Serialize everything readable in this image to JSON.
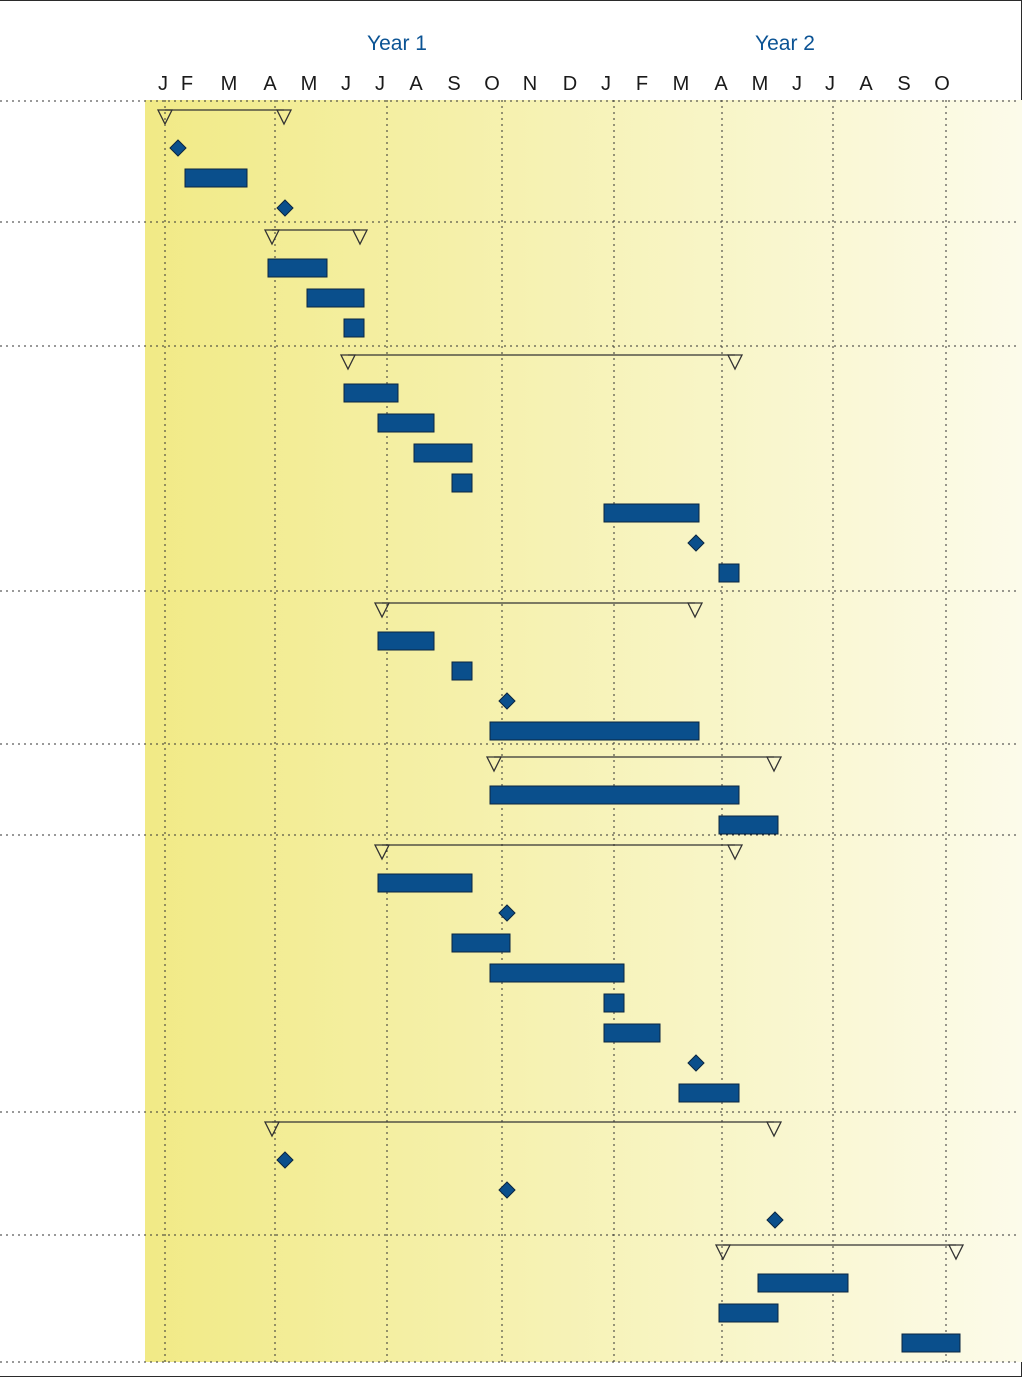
{
  "chart_data": {
    "type": "gantt",
    "time_axis": {
      "years": [
        {
          "label": "Year 1",
          "months": [
            "J",
            "F",
            "M",
            "A",
            "M",
            "J",
            "J",
            "A",
            "S",
            "O",
            "N",
            "D"
          ]
        },
        {
          "label": "Year 2",
          "months": [
            "J",
            "F",
            "M",
            "A",
            "M",
            "J",
            "J",
            "A",
            "S",
            "O"
          ]
        }
      ],
      "start": "Year 1 Jan",
      "end": "Year 2 Oct",
      "grid": "dotted"
    },
    "colors": {
      "bar": "#0a4f8c",
      "milestone": "#0a4f8c",
      "summary": "#333333",
      "gradient_start": "#f1ea86",
      "gradient_end": "#fcfbea",
      "year_label": "#0b5394",
      "grid": "#333333"
    },
    "groups": [
      {
        "summary": [
          "Y1-Jan",
          "Y1-Apr"
        ],
        "items": [
          {
            "type": "milestone",
            "date": "Y1-Jan"
          },
          {
            "type": "task",
            "start": "Y1-Feb",
            "end": "Y1-Mar"
          },
          {
            "type": "milestone",
            "date": "Y1-Apr"
          }
        ]
      },
      {
        "summary": [
          "Y1-Apr",
          "Y1-Jun"
        ],
        "items": [
          {
            "type": "task",
            "start": "Y1-Apr",
            "end": "Y1-May"
          },
          {
            "type": "task",
            "start": "Y1-May",
            "end": "Y1-Jun"
          },
          {
            "type": "task",
            "start": "Y1-Jun",
            "end": "Y1-Jun"
          }
        ]
      },
      {
        "summary": [
          "Y1-Jun",
          "Y2-Apr"
        ],
        "items": [
          {
            "type": "task",
            "start": "Y1-Jun",
            "end": "Y1-Jul"
          },
          {
            "type": "task",
            "start": "Y1-Jul",
            "end": "Y1-Aug"
          },
          {
            "type": "task",
            "start": "Y1-Aug",
            "end": "Y1-Sep"
          },
          {
            "type": "task",
            "start": "Y1-Sep",
            "end": "Y1-Sep"
          },
          {
            "type": "task",
            "start": "Y2-Jan",
            "end": "Y2-Mar"
          },
          {
            "type": "milestone",
            "date": "Y2-Mar"
          },
          {
            "type": "task",
            "start": "Y2-Apr",
            "end": "Y2-Apr"
          }
        ]
      },
      {
        "summary": [
          "Y1-Jul",
          "Y2-Mar"
        ],
        "items": [
          {
            "type": "task",
            "start": "Y1-Jul",
            "end": "Y1-Aug"
          },
          {
            "type": "task",
            "start": "Y1-Sep",
            "end": "Y1-Sep"
          },
          {
            "type": "milestone",
            "date": "Y1-Oct"
          },
          {
            "type": "task",
            "start": "Y1-Oct",
            "end": "Y2-Mar"
          }
        ]
      },
      {
        "summary": [
          "Y1-Oct",
          "Y2-May"
        ],
        "items": [
          {
            "type": "task",
            "start": "Y1-Oct",
            "end": "Y2-Apr"
          },
          {
            "type": "task",
            "start": "Y2-Apr",
            "end": "Y2-May"
          }
        ]
      },
      {
        "summary": [
          "Y1-Jul",
          "Y2-Apr"
        ],
        "items": [
          {
            "type": "task",
            "start": "Y1-Jul",
            "end": "Y1-Sep"
          },
          {
            "type": "milestone",
            "date": "Y1-Oct"
          },
          {
            "type": "task",
            "start": "Y1-Sep",
            "end": "Y1-Oct"
          },
          {
            "type": "task",
            "start": "Y1-Oct",
            "end": "Y2-Jan"
          },
          {
            "type": "task",
            "start": "Y2-Jan",
            "end": "Y2-Jan"
          },
          {
            "type": "task",
            "start": "Y2-Jan",
            "end": "Y2-Feb"
          },
          {
            "type": "milestone",
            "date": "Y2-Mar"
          },
          {
            "type": "task",
            "start": "Y2-Mar",
            "end": "Y2-Apr"
          }
        ]
      },
      {
        "summary": [
          "Y1-Apr",
          "Y2-May"
        ],
        "items": [
          {
            "type": "milestone",
            "date": "Y1-Apr"
          },
          {
            "type": "milestone",
            "date": "Y1-Oct"
          },
          {
            "type": "milestone",
            "date": "Y2-May"
          }
        ]
      },
      {
        "summary": [
          "Y2-Apr",
          "Y2-Oct"
        ],
        "items": [
          {
            "type": "task",
            "start": "Y2-May",
            "end": "Y2-Jul"
          },
          {
            "type": "task",
            "start": "Y2-Apr",
            "end": "Y2-May"
          },
          {
            "type": "task",
            "start": "Y2-Sep",
            "end": "Y2-Oct"
          }
        ]
      }
    ]
  }
}
